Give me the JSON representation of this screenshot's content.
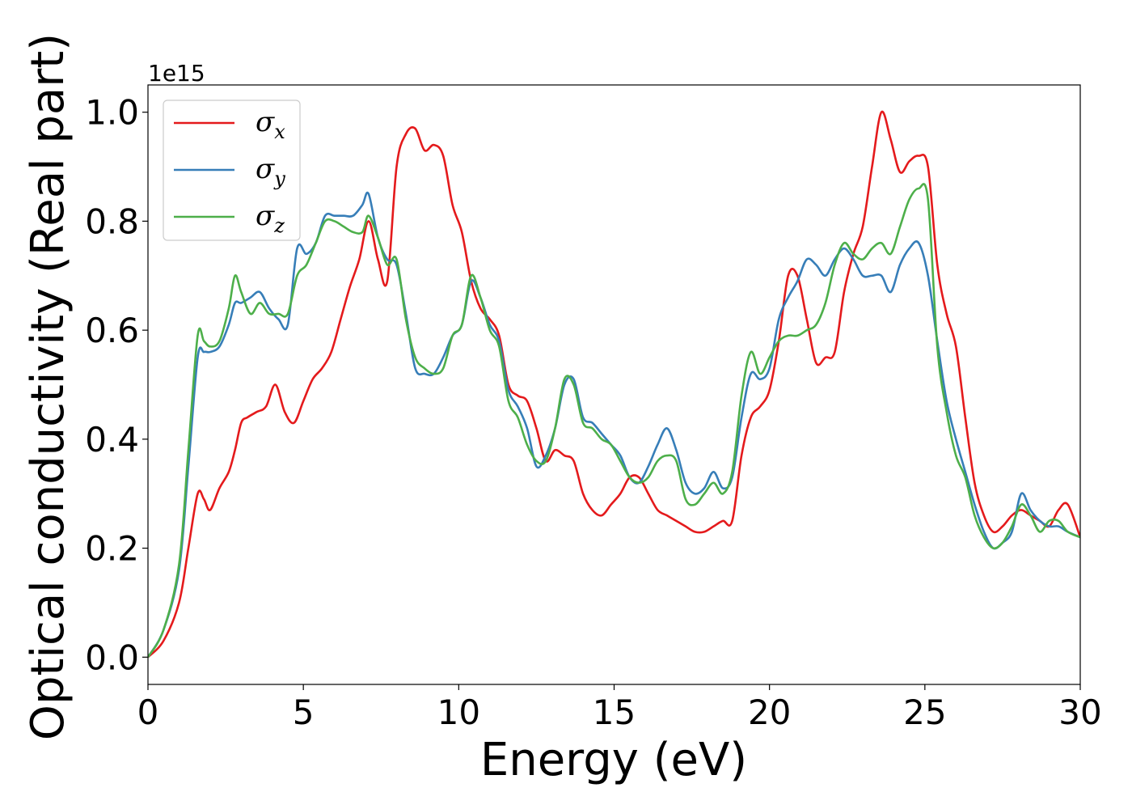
{
  "chart_data": {
    "type": "line",
    "xlabel": "Energy (eV)",
    "ylabel": "Optical conductivity (Real part)",
    "y_offset_text": "1e15",
    "xlim": [
      0,
      30
    ],
    "ylim": [
      -0.05,
      1.05
    ],
    "xticks": [
      0,
      5,
      10,
      15,
      20,
      25,
      30
    ],
    "yticks": [
      0.0,
      0.2,
      0.4,
      0.6,
      0.8,
      1.0
    ],
    "xtick_labels": [
      "0",
      "5",
      "10",
      "15",
      "20",
      "25",
      "30"
    ],
    "ytick_labels": [
      "0.0",
      "0.2",
      "0.4",
      "0.6",
      "0.8",
      "1.0"
    ],
    "grid": false,
    "legend_placement": "top-left",
    "series": [
      {
        "name": "σx",
        "legend_symbol": "σ",
        "legend_sub": "x",
        "color": "#e41a1c",
        "x": [
          0,
          0.5,
          1.0,
          1.3,
          1.6,
          1.8,
          2.0,
          2.3,
          2.6,
          2.8,
          3.0,
          3.2,
          3.5,
          3.8,
          4.1,
          4.4,
          4.7,
          5.0,
          5.3,
          5.6,
          5.9,
          6.2,
          6.5,
          6.8,
          7.1,
          7.4,
          7.7,
          8.0,
          8.3,
          8.6,
          8.9,
          9.2,
          9.5,
          9.8,
          10.1,
          10.4,
          10.7,
          11.0,
          11.3,
          11.6,
          11.9,
          12.2,
          12.5,
          12.8,
          13.1,
          13.4,
          13.7,
          14.0,
          14.3,
          14.6,
          14.9,
          15.2,
          15.5,
          15.8,
          16.1,
          16.4,
          16.7,
          17.0,
          17.3,
          17.6,
          17.9,
          18.2,
          18.5,
          18.8,
          19.1,
          19.4,
          19.7,
          20.0,
          20.3,
          20.6,
          20.9,
          21.2,
          21.5,
          21.8,
          22.1,
          22.4,
          22.7,
          23.0,
          23.3,
          23.6,
          23.9,
          24.2,
          24.5,
          24.8,
          25.1,
          25.4,
          25.7,
          26.0,
          26.3,
          26.6,
          26.9,
          27.2,
          27.5,
          27.8,
          28.1,
          28.4,
          28.7,
          29.0,
          29.3,
          29.6,
          30.0
        ],
        "values": [
          0.0,
          0.03,
          0.1,
          0.2,
          0.3,
          0.29,
          0.27,
          0.31,
          0.34,
          0.38,
          0.43,
          0.44,
          0.45,
          0.46,
          0.5,
          0.45,
          0.43,
          0.47,
          0.51,
          0.53,
          0.56,
          0.62,
          0.68,
          0.73,
          0.8,
          0.73,
          0.69,
          0.9,
          0.96,
          0.97,
          0.93,
          0.94,
          0.92,
          0.83,
          0.78,
          0.69,
          0.64,
          0.62,
          0.59,
          0.5,
          0.48,
          0.47,
          0.42,
          0.36,
          0.38,
          0.37,
          0.36,
          0.3,
          0.27,
          0.26,
          0.28,
          0.3,
          0.33,
          0.33,
          0.3,
          0.27,
          0.26,
          0.25,
          0.24,
          0.23,
          0.23,
          0.24,
          0.25,
          0.25,
          0.37,
          0.44,
          0.46,
          0.49,
          0.58,
          0.7,
          0.7,
          0.62,
          0.54,
          0.55,
          0.56,
          0.67,
          0.74,
          0.79,
          0.9,
          1.0,
          0.95,
          0.89,
          0.91,
          0.92,
          0.9,
          0.72,
          0.63,
          0.57,
          0.44,
          0.32,
          0.26,
          0.23,
          0.24,
          0.26,
          0.27,
          0.26,
          0.25,
          0.24,
          0.27,
          0.28,
          0.22
        ]
      },
      {
        "name": "σy",
        "legend_symbol": "σ",
        "legend_sub": "y",
        "color": "#377eb8",
        "x": [
          0,
          0.5,
          1.0,
          1.3,
          1.6,
          1.8,
          2.0,
          2.3,
          2.6,
          2.8,
          3.0,
          3.3,
          3.6,
          3.9,
          4.2,
          4.5,
          4.8,
          5.1,
          5.4,
          5.7,
          6.0,
          6.3,
          6.6,
          6.9,
          7.1,
          7.4,
          7.7,
          8.0,
          8.3,
          8.6,
          8.9,
          9.2,
          9.5,
          9.8,
          10.1,
          10.4,
          10.7,
          11.0,
          11.3,
          11.6,
          11.9,
          12.2,
          12.5,
          12.8,
          13.1,
          13.4,
          13.7,
          14.0,
          14.3,
          14.6,
          14.9,
          15.2,
          15.5,
          15.8,
          16.1,
          16.4,
          16.7,
          17.0,
          17.3,
          17.6,
          17.9,
          18.2,
          18.5,
          18.8,
          19.1,
          19.4,
          19.7,
          20.0,
          20.3,
          20.6,
          20.9,
          21.2,
          21.5,
          21.8,
          22.1,
          22.4,
          22.7,
          23.0,
          23.3,
          23.6,
          23.9,
          24.2,
          24.5,
          24.8,
          25.1,
          25.4,
          25.7,
          26.0,
          26.3,
          26.6,
          26.9,
          27.2,
          27.5,
          27.8,
          28.1,
          28.4,
          28.7,
          29.0,
          29.3,
          29.6,
          30.0
        ],
        "values": [
          0.0,
          0.05,
          0.16,
          0.35,
          0.55,
          0.56,
          0.56,
          0.57,
          0.61,
          0.65,
          0.65,
          0.66,
          0.67,
          0.64,
          0.62,
          0.61,
          0.75,
          0.74,
          0.76,
          0.81,
          0.81,
          0.81,
          0.81,
          0.83,
          0.85,
          0.77,
          0.73,
          0.72,
          0.63,
          0.53,
          0.52,
          0.52,
          0.55,
          0.59,
          0.61,
          0.69,
          0.66,
          0.61,
          0.58,
          0.49,
          0.46,
          0.42,
          0.35,
          0.37,
          0.42,
          0.5,
          0.51,
          0.44,
          0.43,
          0.41,
          0.39,
          0.37,
          0.33,
          0.32,
          0.35,
          0.39,
          0.42,
          0.38,
          0.32,
          0.3,
          0.31,
          0.34,
          0.31,
          0.33,
          0.44,
          0.52,
          0.51,
          0.53,
          0.62,
          0.66,
          0.69,
          0.73,
          0.72,
          0.7,
          0.73,
          0.75,
          0.73,
          0.7,
          0.7,
          0.7,
          0.67,
          0.72,
          0.75,
          0.76,
          0.7,
          0.58,
          0.47,
          0.4,
          0.34,
          0.28,
          0.23,
          0.2,
          0.21,
          0.23,
          0.3,
          0.27,
          0.25,
          0.24,
          0.24,
          0.23,
          0.22
        ]
      },
      {
        "name": "σz",
        "legend_symbol": "σ",
        "legend_sub": "z",
        "color": "#4daf4a",
        "x": [
          0,
          0.5,
          1.0,
          1.3,
          1.6,
          1.8,
          2.0,
          2.3,
          2.6,
          2.8,
          3.0,
          3.3,
          3.6,
          3.9,
          4.2,
          4.5,
          4.8,
          5.1,
          5.4,
          5.7,
          6.0,
          6.3,
          6.6,
          6.9,
          7.1,
          7.4,
          7.7,
          8.0,
          8.3,
          8.6,
          8.9,
          9.2,
          9.5,
          9.8,
          10.1,
          10.4,
          10.7,
          11.0,
          11.3,
          11.6,
          11.9,
          12.2,
          12.5,
          12.8,
          13.1,
          13.4,
          13.7,
          14.0,
          14.3,
          14.6,
          14.9,
          15.2,
          15.5,
          15.8,
          16.1,
          16.4,
          16.7,
          17.0,
          17.3,
          17.6,
          17.9,
          18.2,
          18.5,
          18.8,
          19.1,
          19.4,
          19.7,
          20.0,
          20.3,
          20.6,
          20.9,
          21.2,
          21.5,
          21.8,
          22.1,
          22.4,
          22.7,
          23.0,
          23.3,
          23.6,
          23.9,
          24.2,
          24.5,
          24.8,
          25.1,
          25.4,
          25.7,
          26.0,
          26.3,
          26.6,
          26.9,
          27.2,
          27.5,
          27.8,
          28.1,
          28.4,
          28.7,
          29.0,
          29.3,
          29.6,
          30.0
        ],
        "values": [
          0.0,
          0.05,
          0.17,
          0.38,
          0.59,
          0.58,
          0.57,
          0.58,
          0.64,
          0.7,
          0.67,
          0.63,
          0.65,
          0.63,
          0.63,
          0.63,
          0.7,
          0.72,
          0.76,
          0.8,
          0.8,
          0.79,
          0.78,
          0.78,
          0.81,
          0.77,
          0.72,
          0.73,
          0.62,
          0.55,
          0.53,
          0.52,
          0.53,
          0.59,
          0.61,
          0.7,
          0.66,
          0.6,
          0.57,
          0.47,
          0.44,
          0.39,
          0.36,
          0.36,
          0.42,
          0.51,
          0.5,
          0.43,
          0.42,
          0.4,
          0.39,
          0.36,
          0.33,
          0.32,
          0.33,
          0.36,
          0.37,
          0.36,
          0.29,
          0.28,
          0.3,
          0.32,
          0.3,
          0.34,
          0.48,
          0.56,
          0.52,
          0.55,
          0.58,
          0.59,
          0.59,
          0.6,
          0.61,
          0.65,
          0.72,
          0.76,
          0.74,
          0.73,
          0.75,
          0.76,
          0.74,
          0.79,
          0.84,
          0.86,
          0.84,
          0.57,
          0.45,
          0.37,
          0.33,
          0.26,
          0.22,
          0.2,
          0.21,
          0.24,
          0.28,
          0.26,
          0.23,
          0.25,
          0.25,
          0.23,
          0.22
        ]
      }
    ]
  }
}
